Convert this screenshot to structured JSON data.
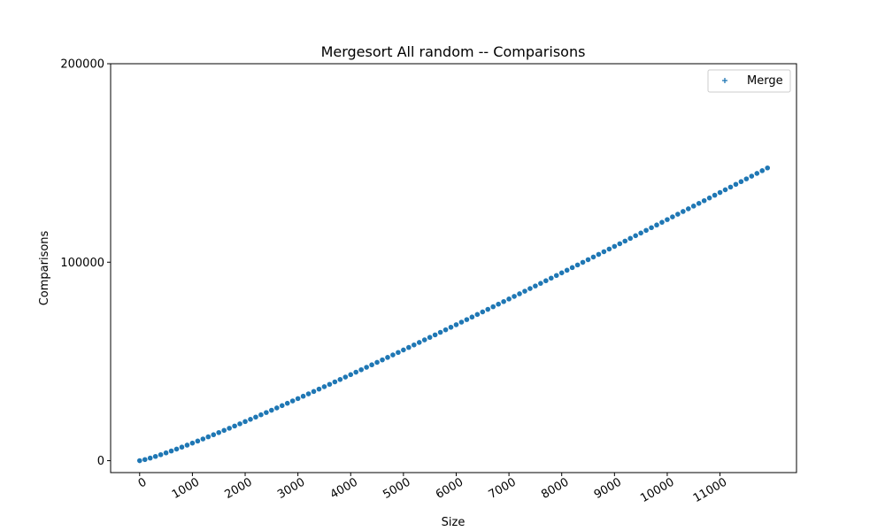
{
  "chart_data": {
    "type": "scatter",
    "title": "Mergesort All random -- Comparisons",
    "xlabel": "Size",
    "ylabel": "Comparisons",
    "xlim": [
      -550,
      12450
    ],
    "ylim": [
      -6000,
      200000
    ],
    "xticks": [
      0,
      1000,
      2000,
      3000,
      4000,
      5000,
      6000,
      7000,
      8000,
      9000,
      10000,
      11000
    ],
    "xtick_labels": [
      "0",
      "1000",
      "2000",
      "3000",
      "4000",
      "5000",
      "6000",
      "7000",
      "8000",
      "9000",
      "10000",
      "11000"
    ],
    "yticks": [
      0,
      100000,
      200000
    ],
    "ytick_labels": [
      "0",
      "100000",
      "200000"
    ],
    "grid": false,
    "legend": {
      "position": "top-right",
      "marker": "+",
      "entries": [
        "Merge"
      ]
    },
    "series": [
      {
        "name": "Merge",
        "color": "#1f77b4",
        "x_start": 0,
        "x_step": 100,
        "x_count": 120,
        "y_model": "n*log2(n) - n",
        "y_first": 0,
        "y_last": 147500
      }
    ]
  }
}
